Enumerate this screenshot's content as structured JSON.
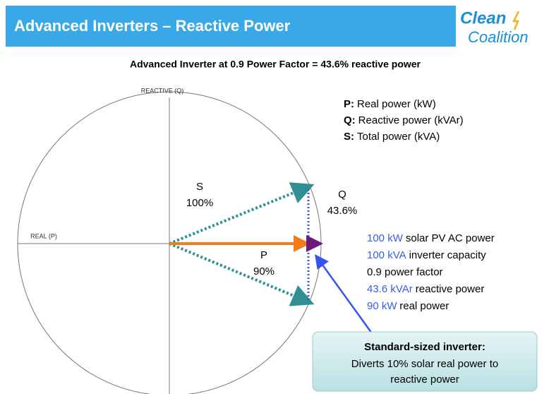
{
  "header": {
    "title": "Advanced Inverters – Reactive Power",
    "logo_top": "Clean",
    "logo_bottom": "Coalition"
  },
  "subtitle": "Advanced Inverter at 0.9 Power Factor = 43.6% reactive power",
  "axes": {
    "vertical": "REACTIVE (Q)",
    "horizontal": "REAL (P)"
  },
  "vectors": {
    "s": {
      "name": "S",
      "percent": "100%"
    },
    "p": {
      "name": "P",
      "percent": "90%"
    },
    "q": {
      "name": "Q",
      "percent": "43.6%"
    }
  },
  "legend": [
    {
      "key": "P:",
      "text": "Real power (kW)"
    },
    {
      "key": "Q:",
      "text": "Reactive power (kVAr)"
    },
    {
      "key": "S:",
      "text": "Total power (kVA)"
    }
  ],
  "specs": [
    {
      "highlight": "100 kW",
      "text": "solar PV AC power"
    },
    {
      "highlight": "100 kVA",
      "text": "inverter capacity"
    },
    {
      "highlight": "",
      "text": "0.9 power factor"
    },
    {
      "highlight": "43.6 kVAr",
      "text": "reactive power"
    },
    {
      "highlight": "90 kW",
      "text": "real power"
    }
  ],
  "callout": {
    "title": "Standard-sized inverter:",
    "lines": [
      "Diverts 10% solar real power to",
      "reactive power"
    ]
  }
}
